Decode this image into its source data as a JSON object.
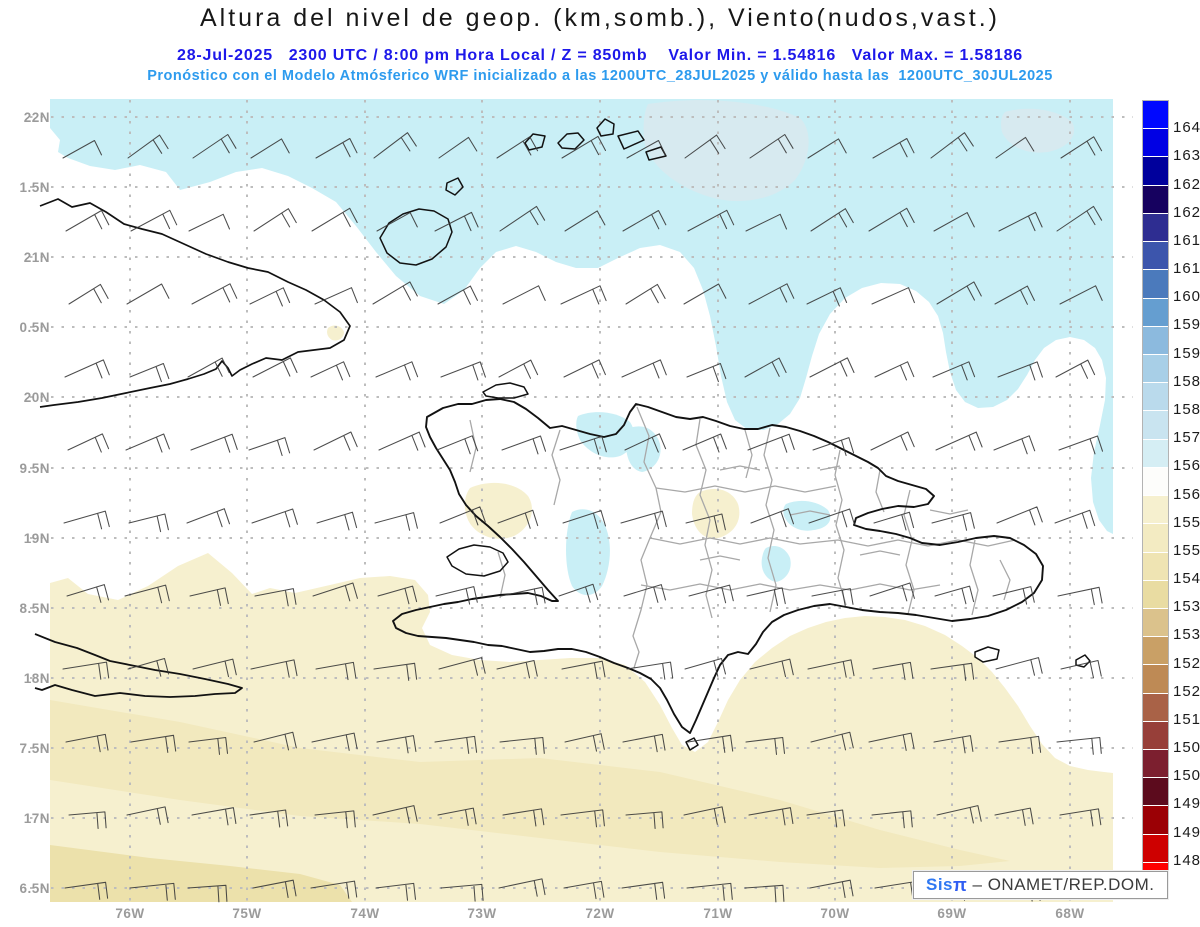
{
  "header": {
    "title": "Altura del nivel de geop. (km,somb.), Viento(nudos,vast.)",
    "run_line": "28-Jul-2025   2300 UTC / 8:00 pm Hora Local / Z = 850mb    Valor Min. = 1.54816   Valor Max. = 1.58186",
    "forecast_line": "Pronóstico con el Modelo Atmósferico WRF inicializado a las 1200UTC_28JUL2025 y válido hasta las  1200UTC_30JUL2025"
  },
  "axes": {
    "lat_ticks": [
      "22N",
      "1.5N",
      "21N",
      "0.5N",
      "20N",
      "9.5N",
      "19N",
      "8.5N",
      "18N",
      "7.5N",
      "17N",
      "6.5N"
    ],
    "lon_ticks": [
      "76W",
      "75W",
      "74W",
      "73W",
      "72W",
      "71W",
      "70W",
      "69W",
      "68W"
    ]
  },
  "colorbar": {
    "tick_labels": [
      "1641",
      "1635",
      "1629",
      "1623",
      "1617",
      "1611",
      "1605",
      "1599",
      "1593",
      "1587",
      "1581",
      "1575",
      "1569",
      "1563",
      "1557",
      "1551",
      "1545",
      "1539",
      "1533",
      "1527",
      "1521",
      "1515",
      "1509",
      "1503",
      "1497",
      "1491",
      "1485"
    ],
    "segment_colors": [
      "#0008ff",
      "#0000e4",
      "#00009c",
      "#16015f",
      "#2e2d91",
      "#3c55ac",
      "#4b7abc",
      "#659ed0",
      "#8cbade",
      "#a8cfe7",
      "#badaec",
      "#c9e4f0",
      "#d5eef4",
      "#fdfdfb",
      "#f6f0cf",
      "#f3ebc2",
      "#efe4b3",
      "#e9dca2",
      "#dbc28c",
      "#c9a066",
      "#be8a55",
      "#a96247",
      "#973f39",
      "#7c1f2f",
      "#5c0b1d",
      "#9b0005",
      "#ce0000",
      "#ff0000"
    ]
  },
  "branding": {
    "system_prefix": "Sis",
    "system_pi": "π",
    "org": " – ONAMET/REP.DOM."
  },
  "map_colors": {
    "shade_cyan": "#c9eff6",
    "shade_cyan_light": "#d7eaf0",
    "shade_yellow_pale": "#f6f0cf",
    "shade_yellow_mid": "#f2e9be",
    "shade_yellow_deep": "#ece1ab",
    "coastline": "#121212",
    "province_border": "#a8a8a8",
    "grid": "#bdbdbd",
    "wind_barb": "#383838"
  },
  "chart_data": {
    "type": "heatmap",
    "title": "Altura del nivel de geop. (km,somb.), Viento(nudos,vast.)",
    "level": "850mb",
    "valid_time": "28-Jul-2025 2300 UTC / 8:00 pm Hora Local",
    "model_run": "WRF inicializado 1200UTC_28JUL2025, válido hasta 1200UTC_30JUL2025",
    "value_min_km": 1.54816,
    "value_max_km": 1.58186,
    "units_shading": "geopotential height (m), labels on colorbar",
    "units_wind": "nudos (knots), wind barbs",
    "lat_tick_values": [
      "22N",
      "21.5N",
      "21N",
      "20.5N",
      "20N",
      "19.5N",
      "19N",
      "18.5N",
      "18N",
      "17.5N",
      "17N",
      "16.5N"
    ],
    "lon_tick_values": [
      "76W",
      "75W",
      "74W",
      "73W",
      "72W",
      "71W",
      "70W",
      "69W",
      "68W"
    ],
    "scale_levels": [
      1485,
      1491,
      1497,
      1503,
      1509,
      1515,
      1521,
      1527,
      1533,
      1539,
      1545,
      1551,
      1557,
      1563,
      1569,
      1575,
      1581,
      1587,
      1593,
      1599,
      1605,
      1611,
      1617,
      1623,
      1629,
      1635,
      1641
    ],
    "shaded_regions": [
      {
        "region": "north Atlantic band (north of Hispaniola and eastern Cuba)",
        "band_m": "1569-1575",
        "color": "light cyan"
      },
      {
        "region": "patches inside northern band near top center",
        "band_m": "1575-1581",
        "color": "pale grey-blue"
      },
      {
        "region": "central band including most of Hispaniola",
        "band_m": "1563-1569",
        "color": "white"
      },
      {
        "region": "southern Caribbean band (south of 18.5N, incl. Jamaica area)",
        "band_m": "1557-1563",
        "color": "pale yellow"
      },
      {
        "region": "far south strip along bottom of domain",
        "band_m": "1551-1557",
        "color": "light tan"
      }
    ],
    "wind_field": {
      "depiction": "barbs on regular grid",
      "typical": "east to northeast flow, ~10-15 kt"
    }
  }
}
